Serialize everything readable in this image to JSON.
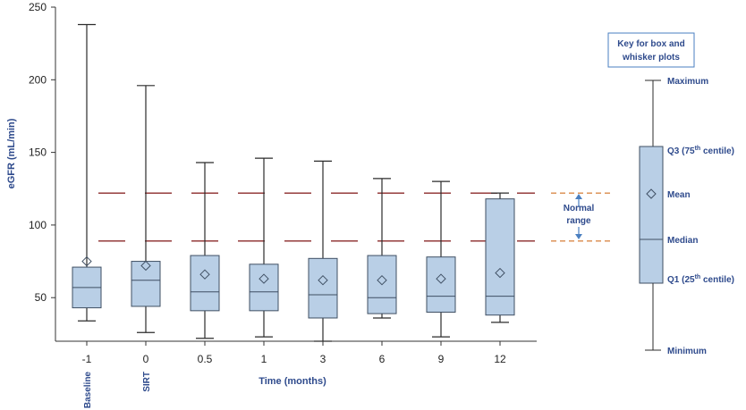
{
  "chart_data": {
    "type": "box",
    "xlabel": "Time (months)",
    "ylabel": "eGFR (mL/min)",
    "ylim": [
      20,
      250
    ],
    "yticks": [
      50,
      100,
      150,
      200,
      250
    ],
    "categories": [
      "-1",
      "0",
      "0.5",
      "1",
      "3",
      "6",
      "9",
      "12"
    ],
    "category_sublabels": [
      "Baseline",
      "SIRT",
      "",
      "",
      "",
      "",
      "",
      ""
    ],
    "boxes": [
      {
        "min": 34,
        "q1": 43,
        "median": 57,
        "q3": 71,
        "max": 238,
        "mean": 75
      },
      {
        "min": 26,
        "q1": 44,
        "median": 62,
        "q3": 75,
        "max": 196,
        "mean": 72
      },
      {
        "min": 22,
        "q1": 41,
        "median": 54,
        "q3": 79,
        "max": 143,
        "mean": 66
      },
      {
        "min": 23,
        "q1": 41,
        "median": 54,
        "q3": 73,
        "max": 146,
        "mean": 63
      },
      {
        "min": 20,
        "q1": 36,
        "median": 52,
        "q3": 77,
        "max": 144,
        "mean": 62
      },
      {
        "min": 36,
        "q1": 39,
        "median": 50,
        "q3": 79,
        "max": 132,
        "mean": 62
      },
      {
        "min": 23,
        "q1": 40,
        "median": 51,
        "q3": 78,
        "max": 130,
        "mean": 63
      },
      {
        "min": 33,
        "q1": 38,
        "median": 51,
        "q3": 118,
        "max": 122,
        "mean": 67
      }
    ],
    "normal_range": {
      "lower": 89,
      "upper": 122,
      "label_line1": "Normal",
      "label_line2": "range"
    },
    "key": {
      "title_line1": "Key for box and",
      "title_line2": "whisker plots",
      "maximum": "Maximum",
      "q3_label": "Q3 (75",
      "q3_sup": "th",
      "q3_suffix": " centile)",
      "mean": "Mean",
      "median": "Median",
      "q1_label": "Q1 (25",
      "q1_sup": "th",
      "q1_suffix": " centile)",
      "minimum": "Minimum"
    },
    "colors": {
      "box_fill": "#b9cfe6",
      "box_stroke": "#3f4f63",
      "whisker": "#2b2b2b",
      "normal_line": "#8b2a2a",
      "normal_line_key": "#d98a4a",
      "arrow": "#4a7fc0",
      "axis_label": "#2e4a8c",
      "key_border": "#4a7fc0"
    }
  }
}
